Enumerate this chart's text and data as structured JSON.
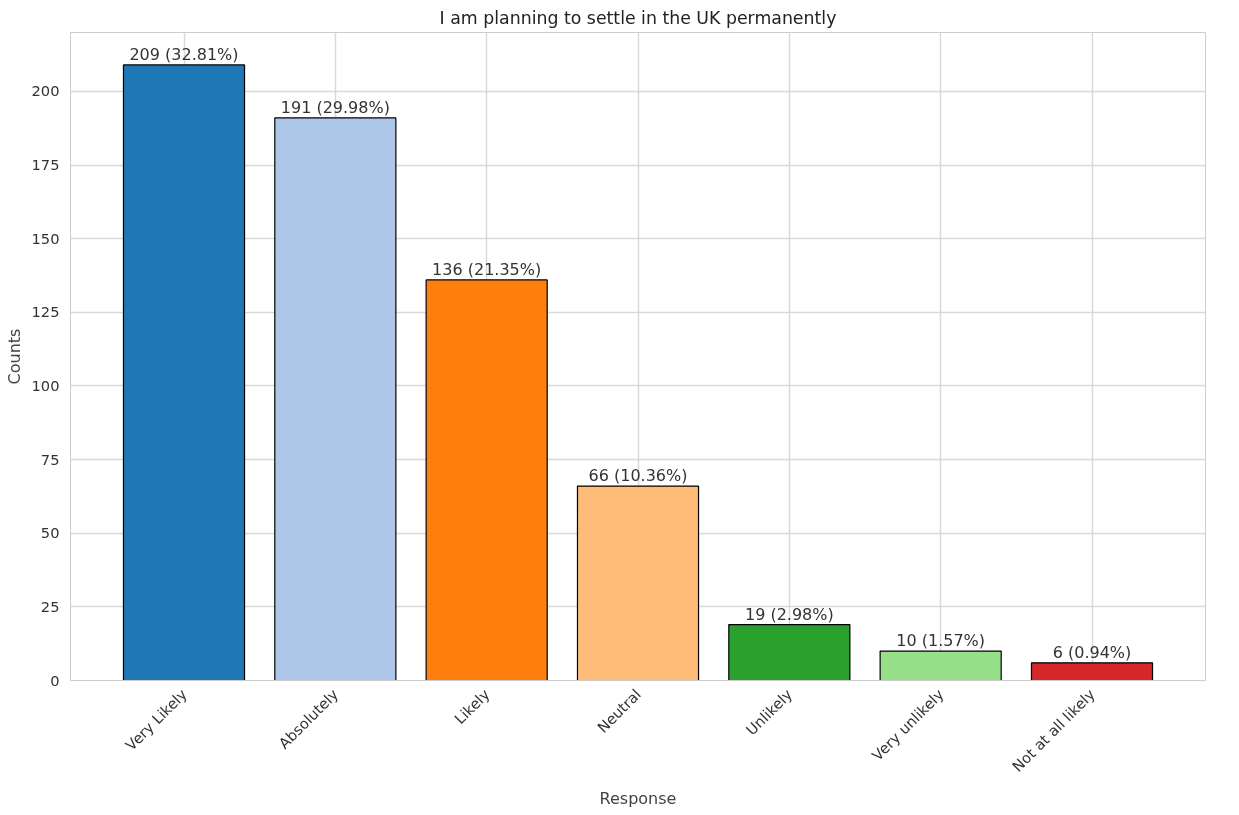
{
  "chart_data": {
    "type": "bar",
    "title": "I am planning to settle in the UK permanently",
    "xlabel": "Response",
    "ylabel": "Counts",
    "categories": [
      "Very Likely",
      "Absolutely",
      "Likely",
      "Neutral",
      "Unlikely",
      "Very unlikely",
      "Not at all likely"
    ],
    "values": [
      209,
      191,
      136,
      66,
      19,
      10,
      6
    ],
    "colors": [
      "#1f77b4",
      "#aec7e8",
      "#ff7f0e",
      "#ffbb78",
      "#2ca02c",
      "#98df8a",
      "#d62728"
    ],
    "value_labels": [
      "209 (32.81%)",
      "191 (29.98%)",
      "136 (21.35%)",
      "66 (10.36%)",
      "19 (2.98%)",
      "10 (1.57%)",
      "6 (0.94%)"
    ],
    "ylim": [
      0,
      220
    ],
    "yticks": [
      0,
      25,
      50,
      75,
      100,
      125,
      150,
      175,
      200
    ],
    "grid": true
  }
}
